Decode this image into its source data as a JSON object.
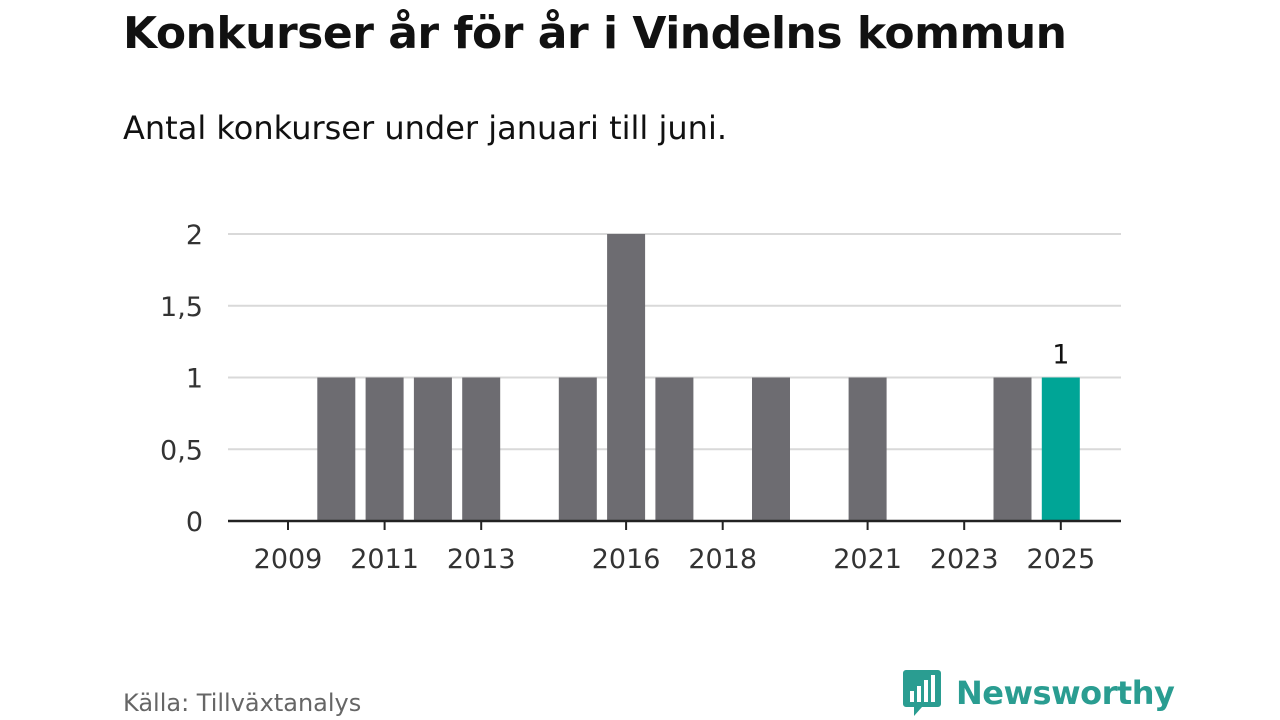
{
  "header": {
    "title": "Konkurser år för år i Vindelns kommun",
    "subtitle": "Antal konkurser under januari till juni."
  },
  "footer": {
    "source": "Källa: Tillväxtanalys",
    "brand": "Newsworthy",
    "brand_icon": "bar-chart-speech-bubble-icon"
  },
  "colors": {
    "bar": "#6d6c71",
    "highlight": "#00a596",
    "grid": "#d9d9d9",
    "axis": "#222222",
    "brand": "#2a9d91"
  },
  "chart_data": {
    "type": "bar",
    "categories": [
      "2009",
      "2010",
      "2011",
      "2012",
      "2013",
      "2014",
      "2015",
      "2016",
      "2017",
      "2018",
      "2019",
      "2020",
      "2021",
      "2022",
      "2023",
      "2024",
      "2025"
    ],
    "values": [
      0,
      1,
      1,
      1,
      1,
      0,
      1,
      2,
      1,
      0,
      1,
      0,
      1,
      0,
      0,
      1,
      1
    ],
    "highlight_category": "2025",
    "data_labels": [
      {
        "category": "2025",
        "text": "1"
      }
    ],
    "x_tick_labels": [
      "2009",
      "2011",
      "2013",
      "2016",
      "2018",
      "2021",
      "2023",
      "2025"
    ],
    "y_ticks": [
      0,
      0.5,
      1,
      1.5,
      2
    ],
    "y_tick_labels": [
      "0",
      "0,5",
      "1",
      "1,5",
      "2"
    ],
    "ylim": [
      0,
      2
    ],
    "xlabel": "",
    "ylabel": "",
    "grid": true,
    "legend": "none"
  }
}
